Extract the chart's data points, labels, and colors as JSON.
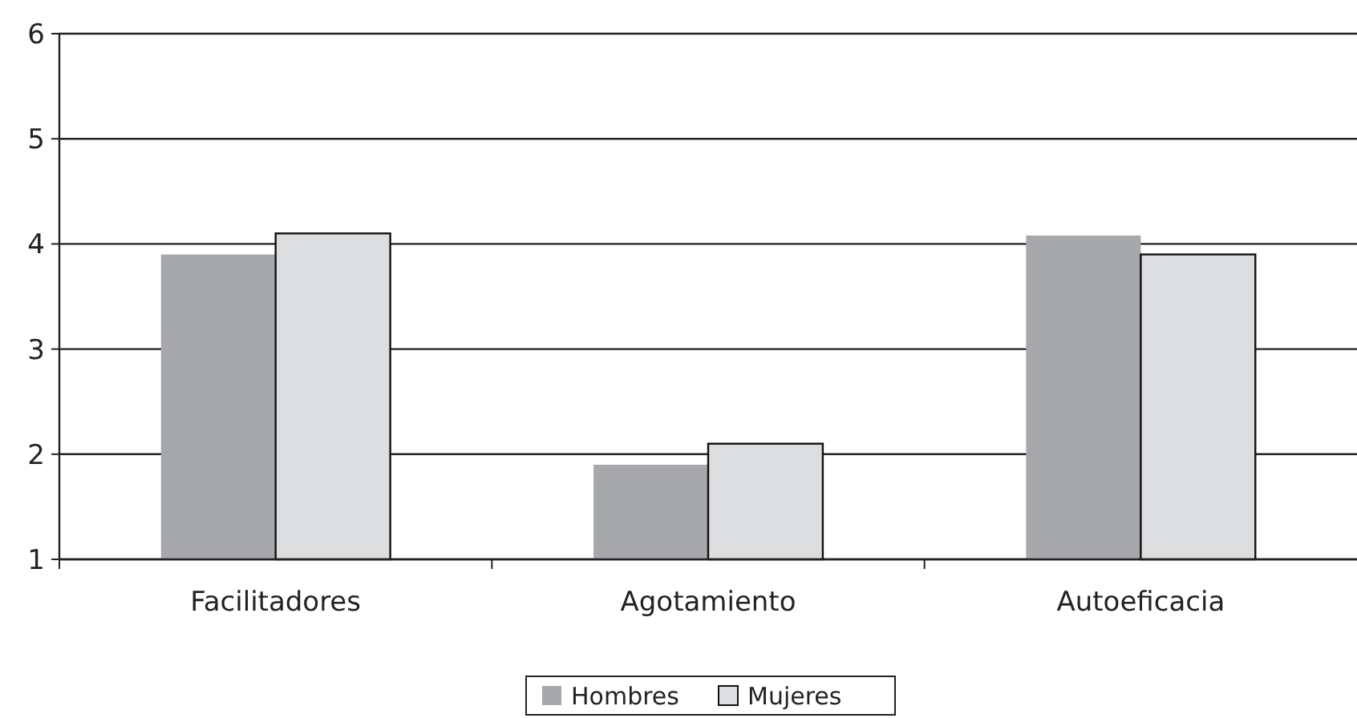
{
  "chart_data": {
    "type": "bar",
    "categories": [
      "Facilitadores",
      "Agotamiento",
      "Autoeficacia"
    ],
    "series": [
      {
        "name": "Hombres",
        "color": "#a7a8ac",
        "values": [
          3.9,
          1.9,
          4.08
        ]
      },
      {
        "name": "Mujeres",
        "color": "#dcdddf",
        "values": [
          4.1,
          2.1,
          3.9
        ]
      }
    ],
    "ylim": [
      1,
      6
    ],
    "yticks": [
      1,
      2,
      3,
      4,
      5,
      6
    ],
    "grid": "y",
    "legend": "bottom"
  }
}
